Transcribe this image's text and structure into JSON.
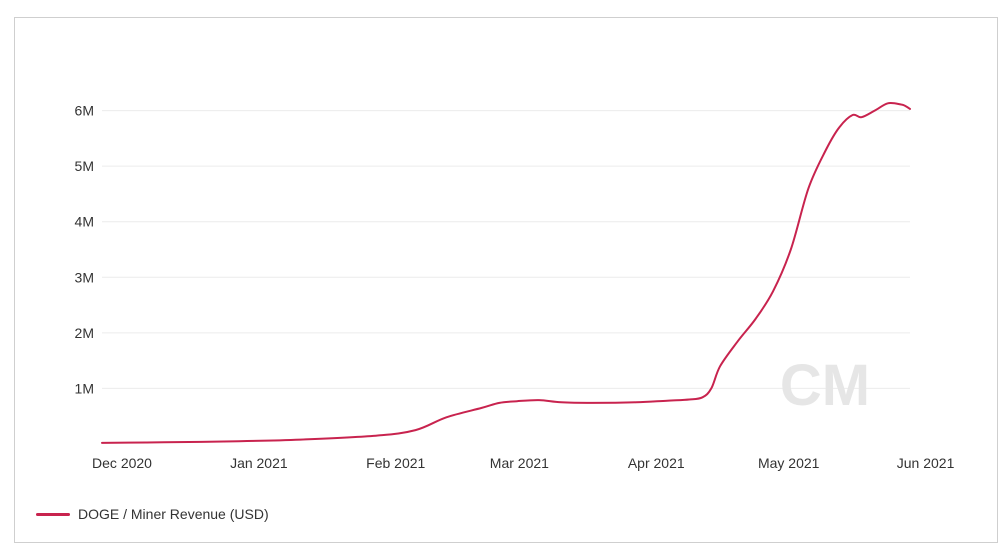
{
  "chart_data": {
    "type": "line",
    "title": "",
    "xlabel": "",
    "ylabel": "",
    "x_ticks": [
      "Dec 2020",
      "Jan 2021",
      "Feb 2021",
      "Mar 2021",
      "Apr 2021",
      "May 2021",
      "Jun 2021"
    ],
    "y_ticks": [
      "1M",
      "2M",
      "3M",
      "4M",
      "5M",
      "6M"
    ],
    "ylim": [
      0,
      7000000
    ],
    "xlim": [
      "2020-12-01",
      "2021-06-02"
    ],
    "grid": "horizontal",
    "legend_position": "bottom-left",
    "watermark": "CM",
    "colors": {
      "series": "#c8234e",
      "grid": "#ececec",
      "watermark": "#e6e6e6"
    },
    "series": [
      {
        "name": "DOGE / Miner Revenue (USD)",
        "x": [
          "2020-12-01",
          "2020-12-15",
          "2021-01-01",
          "2021-01-15",
          "2021-02-01",
          "2021-02-10",
          "2021-02-17",
          "2021-02-25",
          "2021-03-01",
          "2021-03-05",
          "2021-03-10",
          "2021-03-15",
          "2021-03-22",
          "2021-04-01",
          "2021-04-08",
          "2021-04-13",
          "2021-04-16",
          "2021-04-18",
          "2021-04-20",
          "2021-04-24",
          "2021-04-28",
          "2021-05-02",
          "2021-05-06",
          "2021-05-10",
          "2021-05-14",
          "2021-05-17",
          "2021-05-20",
          "2021-05-22",
          "2021-05-25",
          "2021-05-28",
          "2021-05-31",
          "2021-06-01",
          "2021-06-02"
        ],
        "y": [
          20000,
          30000,
          50000,
          80000,
          150000,
          250000,
          480000,
          650000,
          740000,
          770000,
          790000,
          750000,
          740000,
          750000,
          780000,
          800000,
          840000,
          1000000,
          1400000,
          1850000,
          2250000,
          2750000,
          3500000,
          4600000,
          5300000,
          5700000,
          5920000,
          5880000,
          6000000,
          6130000,
          6110000,
          6080000,
          6030000
        ]
      }
    ]
  }
}
